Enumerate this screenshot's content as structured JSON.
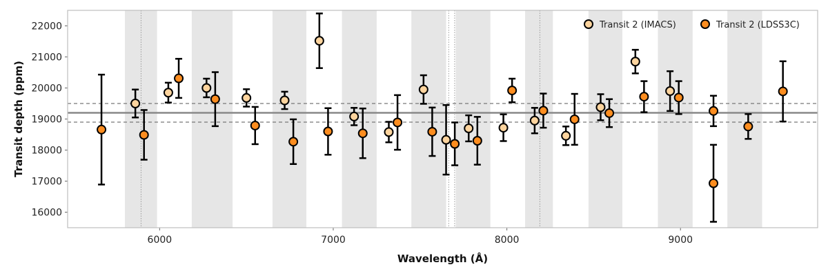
{
  "chart_data": {
    "type": "scatter",
    "xlabel": "Wavelength (Å)",
    "ylabel": "Transit depth (ppm)",
    "xlim": [
      5470,
      9790
    ],
    "ylim": [
      15500,
      22500
    ],
    "xticks": [
      6000,
      7000,
      8000,
      9000
    ],
    "xtick_labels": [
      "6000",
      "7000",
      "8000",
      "9000"
    ],
    "yticks": [
      16000,
      17000,
      18000,
      19000,
      20000,
      21000,
      22000
    ],
    "ytick_labels": [
      "16000",
      "17000",
      "18000",
      "19000",
      "20000",
      "21000",
      "22000"
    ],
    "bands": [
      [
        5800,
        5985
      ],
      [
        6185,
        6420
      ],
      [
        6650,
        6845
      ],
      [
        7050,
        7250
      ],
      [
        7450,
        7650
      ],
      [
        7705,
        7905
      ],
      [
        8105,
        8265
      ],
      [
        8470,
        8665
      ],
      [
        8870,
        9070
      ],
      [
        9270,
        9470
      ]
    ],
    "vlines": [
      5893,
      7665,
      7699,
      8190
    ],
    "hline": 19200,
    "hline_band": [
      18900,
      19500
    ],
    "legend_position": "top-right",
    "series": [
      {
        "name": "Transit 2 (IMACS)",
        "color": "#fdd49e",
        "points": [
          {
            "x": 5860,
            "y": 19500,
            "err": 450
          },
          {
            "x": 6050,
            "y": 19850,
            "err": 320
          },
          {
            "x": 6270,
            "y": 20000,
            "err": 300
          },
          {
            "x": 6500,
            "y": 19680,
            "err": 280
          },
          {
            "x": 6720,
            "y": 19600,
            "err": 280
          },
          {
            "x": 6920,
            "y": 21520,
            "err": 880
          },
          {
            "x": 7120,
            "y": 19080,
            "err": 280
          },
          {
            "x": 7320,
            "y": 18580,
            "err": 330
          },
          {
            "x": 7520,
            "y": 19950,
            "err": 460
          },
          {
            "x": 7650,
            "y": 18330,
            "err": 1120
          },
          {
            "x": 7780,
            "y": 18700,
            "err": 420
          },
          {
            "x": 7980,
            "y": 18720,
            "err": 430
          },
          {
            "x": 8160,
            "y": 18950,
            "err": 410
          },
          {
            "x": 8340,
            "y": 18460,
            "err": 300
          },
          {
            "x": 8540,
            "y": 19380,
            "err": 420
          },
          {
            "x": 8740,
            "y": 20850,
            "err": 380
          },
          {
            "x": 8940,
            "y": 19900,
            "err": 640
          }
        ]
      },
      {
        "name": "Transit 2 (LDSS3C)",
        "color": "#fd8d1f",
        "points": [
          {
            "x": 5665,
            "y": 18660,
            "err": 1770
          },
          {
            "x": 5910,
            "y": 18490,
            "err": 800
          },
          {
            "x": 6110,
            "y": 20310,
            "err": 630
          },
          {
            "x": 6320,
            "y": 19640,
            "err": 870
          },
          {
            "x": 6550,
            "y": 18790,
            "err": 600
          },
          {
            "x": 6770,
            "y": 18270,
            "err": 720
          },
          {
            "x": 6970,
            "y": 18600,
            "err": 750
          },
          {
            "x": 7170,
            "y": 18540,
            "err": 800
          },
          {
            "x": 7370,
            "y": 18890,
            "err": 880
          },
          {
            "x": 7570,
            "y": 18590,
            "err": 780
          },
          {
            "x": 7700,
            "y": 18200,
            "err": 690
          },
          {
            "x": 7830,
            "y": 18300,
            "err": 770
          },
          {
            "x": 8030,
            "y": 19920,
            "err": 380
          },
          {
            "x": 8210,
            "y": 19270,
            "err": 550
          },
          {
            "x": 8390,
            "y": 18990,
            "err": 820
          },
          {
            "x": 8590,
            "y": 19190,
            "err": 450
          },
          {
            "x": 8790,
            "y": 19720,
            "err": 500
          },
          {
            "x": 8990,
            "y": 19690,
            "err": 530
          },
          {
            "x": 9190,
            "y": 16930,
            "err": 1240
          },
          {
            "x": 9190,
            "y": 19260,
            "err": 490
          },
          {
            "x": 9390,
            "y": 18760,
            "err": 400
          },
          {
            "x": 9590,
            "y": 19890,
            "err": 970
          }
        ]
      }
    ]
  }
}
